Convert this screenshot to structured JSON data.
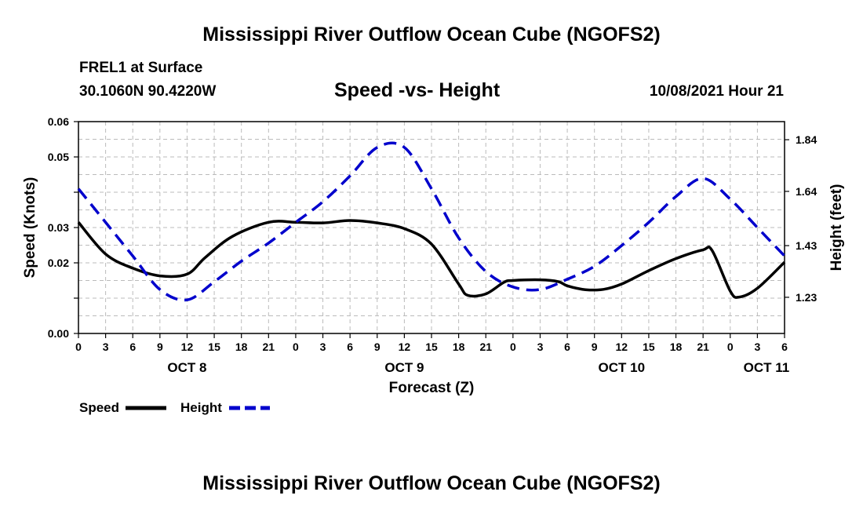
{
  "page_title": "Mississippi River Outflow Ocean Cube (NGOFS2)",
  "footer_title": "Mississippi River Outflow Ocean Cube (NGOFS2)",
  "station": {
    "name": "FREL1 at Surface",
    "coords": "30.1060N  90.4220W"
  },
  "plot_title": "Speed -vs- Height",
  "run_time": "10/08/2021 Hour 21",
  "colors": {
    "speed": "#000000",
    "height": "#0000cc",
    "grid": "#bbbbbb"
  },
  "chart_data": {
    "type": "line",
    "title": "Speed -vs- Height",
    "xlabel": "Forecast (Z)",
    "ylabel": "Speed (Knots)",
    "y2label": "Height (feet)",
    "x_range_hours": [
      0,
      78
    ],
    "x_ticks": [
      {
        "h": 0,
        "label": "0"
      },
      {
        "h": 3,
        "label": "3"
      },
      {
        "h": 6,
        "label": "6"
      },
      {
        "h": 9,
        "label": "9"
      },
      {
        "h": 12,
        "label": "12"
      },
      {
        "h": 15,
        "label": "15"
      },
      {
        "h": 18,
        "label": "18"
      },
      {
        "h": 21,
        "label": "21"
      },
      {
        "h": 24,
        "label": "0"
      },
      {
        "h": 27,
        "label": "3"
      },
      {
        "h": 30,
        "label": "6"
      },
      {
        "h": 33,
        "label": "9"
      },
      {
        "h": 36,
        "label": "12"
      },
      {
        "h": 39,
        "label": "15"
      },
      {
        "h": 42,
        "label": "18"
      },
      {
        "h": 45,
        "label": "21"
      },
      {
        "h": 48,
        "label": "0"
      },
      {
        "h": 51,
        "label": "3"
      },
      {
        "h": 54,
        "label": "6"
      },
      {
        "h": 57,
        "label": "9"
      },
      {
        "h": 60,
        "label": "12"
      },
      {
        "h": 63,
        "label": "15"
      },
      {
        "h": 66,
        "label": "18"
      },
      {
        "h": 69,
        "label": "21"
      },
      {
        "h": 72,
        "label": "0"
      },
      {
        "h": 75,
        "label": "3"
      },
      {
        "h": 78,
        "label": "6"
      }
    ],
    "date_labels": [
      {
        "h": 12,
        "label": "OCT 8"
      },
      {
        "h": 36,
        "label": "OCT 9"
      },
      {
        "h": 60,
        "label": "OCT 10"
      },
      {
        "h": 76,
        "label": "OCT 11"
      }
    ],
    "y_range": [
      0,
      0.06
    ],
    "y_ticks": [
      {
        "v": 0,
        "label": "0.00"
      },
      {
        "v": 0.01,
        "label": ""
      },
      {
        "v": 0.02,
        "label": "0.02"
      },
      {
        "v": 0.03,
        "label": "0.03"
      },
      {
        "v": 0.04,
        "label": ""
      },
      {
        "v": 0.05,
        "label": "0.05"
      },
      {
        "v": 0.06,
        "label": "0.06"
      }
    ],
    "y2_range": [
      1.09,
      1.91
    ],
    "y2_ticks": [
      {
        "v": 1.23,
        "label": "1.23"
      },
      {
        "v": 1.43,
        "label": "1.43"
      },
      {
        "v": 1.64,
        "label": "1.64"
      },
      {
        "v": 1.84,
        "label": "1.84"
      }
    ],
    "series": [
      {
        "name": "Speed",
        "axis": "left",
        "style": "solid",
        "x": [
          0,
          3,
          6,
          9,
          12,
          14,
          17,
          21,
          24,
          27,
          30,
          33,
          36,
          39,
          42,
          43,
          45,
          47,
          48,
          51,
          53,
          54,
          56,
          58,
          60,
          63,
          66,
          69,
          70,
          72,
          73,
          75,
          78
        ],
        "values": [
          0.0315,
          0.0225,
          0.0185,
          0.0163,
          0.0168,
          0.0215,
          0.0275,
          0.0315,
          0.0315,
          0.0313,
          0.032,
          0.0313,
          0.0297,
          0.0253,
          0.014,
          0.0108,
          0.0112,
          0.0145,
          0.015,
          0.0152,
          0.0147,
          0.0135,
          0.0124,
          0.0125,
          0.014,
          0.0178,
          0.0212,
          0.0237,
          0.0235,
          0.012,
          0.0103,
          0.0128,
          0.0202
        ]
      },
      {
        "name": "Height",
        "axis": "right",
        "style": "dashed",
        "x": [
          0,
          3,
          6,
          9,
          12,
          15,
          18,
          21,
          24,
          27,
          30,
          33,
          36,
          39,
          42,
          45,
          48,
          51,
          54,
          57,
          60,
          63,
          66,
          69,
          72,
          75,
          78
        ],
        "values": [
          1.65,
          1.52,
          1.39,
          1.26,
          1.22,
          1.29,
          1.37,
          1.44,
          1.52,
          1.6,
          1.7,
          1.81,
          1.81,
          1.65,
          1.46,
          1.33,
          1.27,
          1.26,
          1.3,
          1.35,
          1.43,
          1.52,
          1.62,
          1.69,
          1.61,
          1.5,
          1.39
        ]
      }
    ],
    "legend": [
      {
        "label": "Speed",
        "style": "solid"
      },
      {
        "label": "Height",
        "style": "dashed"
      }
    ]
  }
}
